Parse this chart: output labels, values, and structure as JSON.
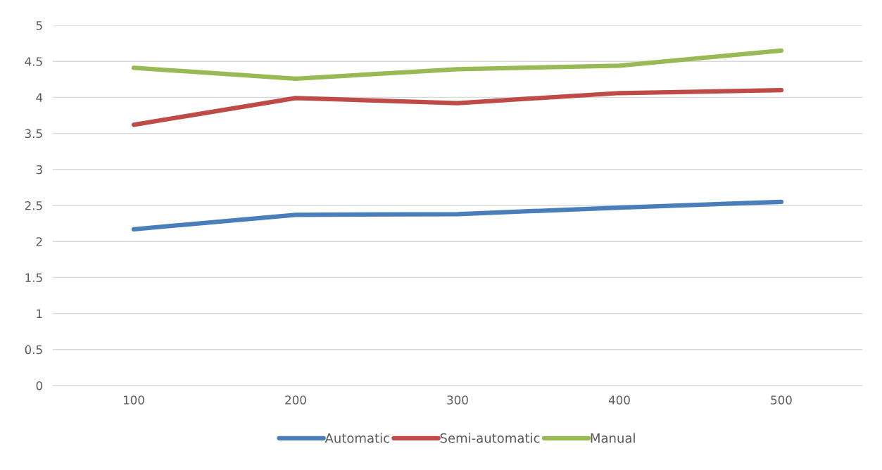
{
  "chart_data": {
    "type": "line",
    "categories": [
      "100",
      "200",
      "300",
      "400",
      "500"
    ],
    "series": [
      {
        "name": "Automatic",
        "color": "#4a7ebb",
        "values": [
          2.17,
          2.37,
          2.38,
          2.47,
          2.55
        ]
      },
      {
        "name": "Semi-automatic",
        "color": "#be4b48",
        "values": [
          3.62,
          3.99,
          3.92,
          4.06,
          4.1
        ]
      },
      {
        "name": "Manual",
        "color": "#98b954",
        "values": [
          4.41,
          4.26,
          4.39,
          4.44,
          4.65
        ]
      }
    ],
    "ylim": [
      0,
      5
    ],
    "yticks": [
      0,
      0.5,
      1,
      1.5,
      2,
      2.5,
      3,
      3.5,
      4,
      4.5,
      5
    ],
    "grid": "y",
    "legend": "bottom",
    "marker": "none",
    "line_style": "solid"
  }
}
